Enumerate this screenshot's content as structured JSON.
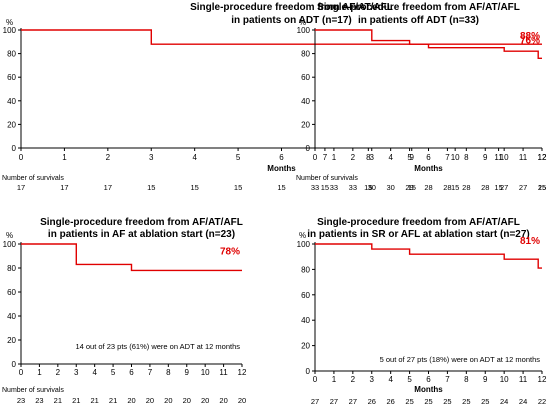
{
  "chart_data": [
    {
      "type": "line",
      "title_lines": [
        "Single-procedure freedom from AF/AT/AFL",
        "in patients on ADT (n=17)"
      ],
      "ylabel": "%",
      "xlabel": "Months",
      "x_ticks": [
        0,
        1,
        2,
        3,
        4,
        5,
        6,
        7,
        8,
        9,
        10,
        11,
        12
      ],
      "y_ticks": [
        0,
        20,
        40,
        60,
        80,
        100
      ],
      "xlim": [
        0,
        12
      ],
      "ylim": [
        0,
        100
      ],
      "series": [
        {
          "color": "#e00000",
          "x": [
            0,
            3,
            3,
            12
          ],
          "y": [
            100,
            100,
            88,
            88
          ]
        }
      ],
      "end_label": "88%",
      "end_label_y": 88,
      "note": "",
      "survivals_header": "Number of survivals",
      "survivals": [
        "17",
        "17",
        "17",
        "15",
        "15",
        "15",
        "15",
        "15",
        "15",
        "15",
        "15",
        "15",
        "15"
      ]
    },
    {
      "type": "line",
      "title_lines": [
        "Single-procedure freedom from AF/AT/AFL",
        "in patients off ADT (n=33)"
      ],
      "ylabel": "%",
      "xlabel": "Months",
      "x_ticks": [
        0,
        1,
        2,
        3,
        4,
        5,
        6,
        7,
        8,
        9,
        10,
        11,
        12
      ],
      "y_ticks": [
        0,
        20,
        40,
        60,
        80,
        100
      ],
      "xlim": [
        0,
        12
      ],
      "ylim": [
        0,
        100
      ],
      "series": [
        {
          "color": "#e00000",
          "x": [
            0,
            3,
            3,
            5,
            5,
            6,
            6,
            10,
            10,
            11.8,
            11.8,
            12
          ],
          "y": [
            100,
            100,
            91,
            91,
            88,
            88,
            85,
            85,
            82,
            82,
            76,
            76
          ]
        }
      ],
      "end_label": "76%",
      "end_label_y": 85,
      "note": "",
      "survivals_header": "Number of survivals",
      "survivals": [
        "33",
        "33",
        "33",
        "30",
        "30",
        "29",
        "28",
        "28",
        "28",
        "28",
        "27",
        "27",
        "25"
      ]
    },
    {
      "type": "line",
      "title_lines": [
        "Single-procedure freedom from AF/AT/AFL",
        "in patients in AF at ablation start (n=23)"
      ],
      "ylabel": "%",
      "xlabel": "Months",
      "x_ticks": [
        0,
        1,
        2,
        3,
        4,
        5,
        6,
        7,
        8,
        9,
        10,
        11,
        12
      ],
      "y_ticks": [
        0,
        20,
        40,
        60,
        80,
        100
      ],
      "xlim": [
        0,
        12
      ],
      "ylim": [
        0,
        100
      ],
      "series": [
        {
          "color": "#e00000",
          "x": [
            0,
            3,
            3,
            6,
            6,
            12
          ],
          "y": [
            100,
            100,
            83,
            83,
            78,
            78
          ]
        }
      ],
      "end_label": "78%",
      "end_label_y": 87,
      "note": "14 out of 23 pts (61%) were on ADT at 12 months",
      "survivals_header": "Number of survivals",
      "survivals": [
        "23",
        "23",
        "21",
        "21",
        "21",
        "21",
        "20",
        "20",
        "20",
        "20",
        "20",
        "20",
        "20"
      ]
    },
    {
      "type": "line",
      "title_lines": [
        "Single-procedure freedom from AF/AT/AFL",
        "in patients in SR or AFL at ablation start (n=27)"
      ],
      "ylabel": "%",
      "xlabel": "Months",
      "x_ticks": [
        0,
        1,
        2,
        3,
        4,
        5,
        6,
        7,
        8,
        9,
        10,
        11,
        12
      ],
      "y_ticks": [
        0,
        20,
        40,
        60,
        80,
        100
      ],
      "xlim": [
        0,
        12
      ],
      "ylim": [
        0,
        100
      ],
      "series": [
        {
          "color": "#e00000",
          "x": [
            0,
            3,
            3,
            5,
            5,
            10,
            10,
            11.8,
            11.8,
            12
          ],
          "y": [
            100,
            100,
            96,
            96,
            92,
            92,
            88,
            88,
            81,
            81
          ]
        }
      ],
      "end_label": "81%",
      "end_label_y": 96,
      "note": "5 out of 27 pts (18%) were on ADT at 12 months",
      "survivals_header": "Number of survivals",
      "survivals": [
        "27",
        "27",
        "27",
        "26",
        "26",
        "25",
        "25",
        "25",
        "25",
        "25",
        "24",
        "24",
        "22"
      ]
    }
  ]
}
